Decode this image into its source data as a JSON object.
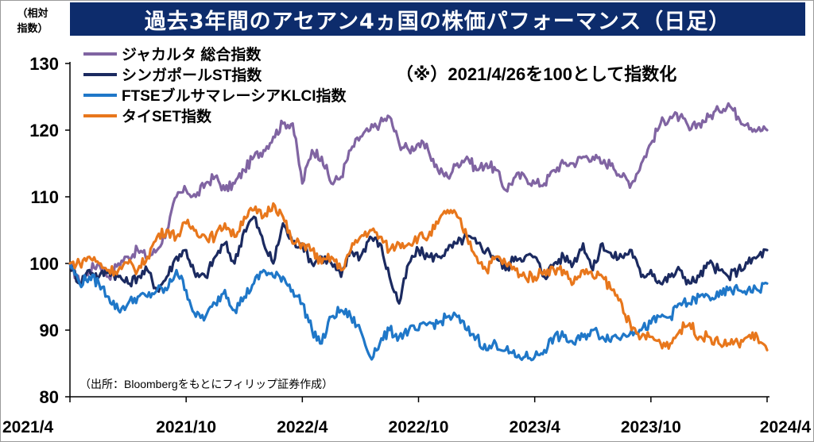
{
  "title": "過去3年間のアセアン4ヵ国の株価パフォーマンス（日足）",
  "y_unit_label": "（相対 指数）",
  "note": "（※）2021/4/26を100として指数化",
  "source": "（出所：Bloombergをもとにフィリップ証券作成）",
  "chart_data": {
    "type": "line",
    "title": "過去3年間のアセアン4ヵ国の株価パフォーマンス（日足）",
    "ylabel": "（相対 指数）",
    "xlabel": "",
    "ylim": [
      80,
      130
    ],
    "yticks": [
      80,
      90,
      100,
      110,
      120,
      130
    ],
    "xlim": [
      "2021/4",
      "2024/4"
    ],
    "xtick_labels": [
      "2021/4",
      "2021/10",
      "2022/4",
      "2022/10",
      "2023/4",
      "2023/10",
      "2024/4"
    ],
    "grid": false,
    "legend_position": "top-left",
    "x_months": [
      0,
      0.5,
      1,
      1.5,
      2,
      2.5,
      3,
      3.5,
      4,
      4.5,
      5,
      5.5,
      6,
      6.5,
      7,
      7.5,
      8,
      8.5,
      9,
      9.5,
      10,
      10.5,
      11,
      11.5,
      12,
      12.5,
      13,
      13.5,
      14,
      14.5,
      15,
      15.5,
      16,
      16.5,
      17,
      17.5,
      18,
      18.5,
      19,
      19.5,
      20,
      20.5,
      21,
      21.5,
      22,
      22.5,
      23,
      23.5,
      24,
      24.5,
      25,
      25.5,
      26,
      26.5,
      27,
      27.5,
      28,
      28.5,
      29,
      29.5,
      30,
      30.5,
      31,
      31.5,
      32,
      32.5,
      33,
      33.5,
      34,
      34.5,
      35,
      35.5,
      36
    ],
    "series": [
      {
        "name": "ジャカルタ 総合指数",
        "color": "#8064a2",
        "values": [
          100,
          97,
          99,
          100,
          98,
          100,
          101,
          102,
          101,
          102,
          105,
          110,
          111,
          110,
          112,
          113,
          111,
          112,
          114,
          116,
          117,
          119,
          121,
          121,
          112,
          117,
          116,
          112,
          113,
          117,
          119,
          120,
          121,
          122,
          118,
          117,
          118,
          117,
          114,
          113,
          115,
          116,
          114,
          115,
          114,
          111,
          113,
          113,
          112,
          112,
          114,
          115,
          115,
          116,
          116,
          115,
          115,
          113,
          112,
          115,
          118,
          121,
          122,
          122,
          120,
          121,
          122,
          123,
          124,
          122,
          121,
          120,
          120
        ]
      },
      {
        "name": "シンガポールST指数",
        "color": "#1b2a60",
        "values": [
          100,
          97,
          99,
          98,
          99,
          98,
          97,
          98,
          99,
          96,
          98,
          101,
          102,
          98,
          98,
          101,
          103,
          100,
          105,
          107,
          103,
          100,
          106,
          103,
          103,
          100,
          101,
          100,
          98,
          102,
          101,
          104,
          103,
          98,
          94,
          100,
          102,
          101,
          101,
          102,
          103,
          104,
          103,
          102,
          101,
          99,
          101,
          101,
          101,
          98,
          100,
          101,
          100,
          103,
          99,
          103,
          101,
          101,
          102,
          98,
          99,
          97,
          98,
          99,
          97,
          98,
          100,
          99,
          98,
          99,
          100,
          101,
          102
        ]
      },
      {
        "name": "FTSEブルサマレーシアKLCI指数",
        "color": "#1f77c8",
        "values": [
          100,
          97,
          98,
          97,
          95,
          93,
          94,
          95,
          95,
          96,
          96,
          99,
          96,
          92,
          92,
          94,
          96,
          93,
          95,
          97,
          99,
          98,
          98,
          96,
          94,
          90,
          88,
          92,
          93,
          92,
          90,
          86,
          88,
          90,
          89,
          90,
          90,
          91,
          91,
          92,
          92,
          90,
          89,
          87,
          88,
          87,
          86,
          86,
          86,
          87,
          89,
          89,
          88,
          89,
          90,
          89,
          89,
          89,
          90,
          90,
          91,
          92,
          92,
          94,
          94,
          95,
          95,
          95,
          96,
          96,
          96,
          96,
          97
        ]
      },
      {
        "name": "タイSET指数",
        "color": "#e8771c",
        "values": [
          100,
          100,
          101,
          100,
          99,
          99,
          100,
          99,
          101,
          104,
          105,
          104,
          106,
          105,
          104,
          104,
          106,
          104,
          107,
          108,
          107,
          109,
          107,
          103,
          103,
          102,
          100,
          101,
          99,
          102,
          104,
          105,
          104,
          102,
          103,
          103,
          104,
          104,
          106,
          108,
          107,
          104,
          101,
          99,
          101,
          100,
          99,
          98,
          98,
          99,
          99,
          99,
          97,
          99,
          98,
          98,
          96,
          94,
          90,
          89,
          89,
          88,
          88,
          90,
          91,
          89,
          89,
          88,
          88,
          88,
          89,
          89,
          87
        ]
      }
    ]
  }
}
